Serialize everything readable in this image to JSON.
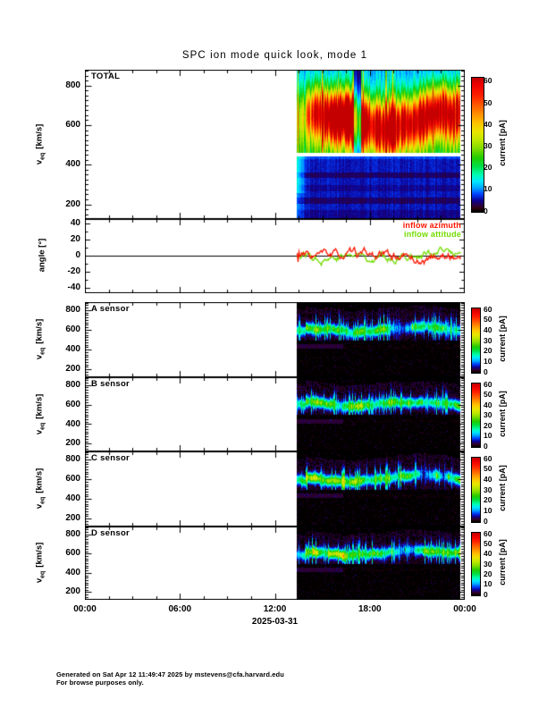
{
  "title": "SPC ion mode quick look, mode 1",
  "panels": [
    {
      "label": "TOTAL"
    },
    {
      "label": "A sensor"
    },
    {
      "label": "B sensor"
    },
    {
      "label": "C sensor"
    },
    {
      "label": "D sensor"
    }
  ],
  "xaxis": {
    "tick_labels": [
      "00:00",
      "06:00",
      "12:00",
      "18:00",
      "00:00"
    ],
    "date_label": "2025-03-31",
    "hours_total": 24
  },
  "yaxis": {
    "velocity_label_v": "v",
    "velocity_label_sub": "eq",
    "velocity_label_unit": "[km/s]",
    "velocity_ticks": [
      200,
      400,
      600,
      800
    ],
    "angle_label": "angle [°]",
    "angle_ticks": [
      40,
      20,
      0,
      -20,
      -40
    ]
  },
  "colorbar": {
    "label": "current [pA]",
    "tick_values": [
      0,
      10,
      20,
      30,
      40,
      50,
      60
    ],
    "range_pA": [
      0,
      62
    ],
    "stops": [
      [
        0,
        "#000000"
      ],
      [
        1.5,
        "#300010"
      ],
      [
        3,
        "#28004a"
      ],
      [
        5,
        "#100090"
      ],
      [
        8,
        "#0040ff"
      ],
      [
        11,
        "#00a8ff"
      ],
      [
        14,
        "#00e8ff"
      ],
      [
        17,
        "#00ffb4"
      ],
      [
        21,
        "#00e047"
      ],
      [
        25,
        "#22cc00"
      ],
      [
        29,
        "#7cdc00"
      ],
      [
        33,
        "#bce800"
      ],
      [
        37,
        "#eae600"
      ],
      [
        41,
        "#ffc400"
      ],
      [
        45,
        "#ff9400"
      ],
      [
        49,
        "#ff6000"
      ],
      [
        54,
        "#ff2000"
      ],
      [
        59,
        "#ee0000"
      ],
      [
        62,
        "#c40000"
      ]
    ]
  },
  "legend": {
    "azimuth": {
      "label": "inflow azimuth",
      "color": "#ff1400"
    },
    "attitude": {
      "label": "inflow attitude",
      "color": "#73dc00"
    }
  },
  "footer": {
    "line1": "Generated on Sat Apr 12 11:49:47 2025 by mstevens@cfa.harvard.edu",
    "line2": "For browse purposes only."
  },
  "chart_data": [
    {
      "panel": "TOTAL",
      "type": "heatmap",
      "x_range_hours": [
        0,
        24
      ],
      "x_tick_labels": [
        "00:00",
        "06:00",
        "12:00",
        "18:00",
        "00:00"
      ],
      "date": "2025-03-31",
      "y_label": "v_eq [km/s]",
      "y_range_kms": [
        130,
        880
      ],
      "y_ticks": [
        200,
        400,
        600,
        800
      ],
      "z_label": "current [pA]",
      "z_range_pA": [
        0,
        62
      ],
      "z_ticks": [
        0,
        10,
        20,
        30,
        40,
        50,
        60
      ],
      "data_coverage_hours": [
        13.4,
        23.7
      ],
      "no_data_region": "white before ~13:24 UT",
      "beam_velocity_range_kms": [
        560,
        700
      ],
      "beam_peak_current_pA": 60,
      "beam_onset_current_pA": 30,
      "white_gap_velocity_kms": 452,
      "low_velocity_background_pA": 6,
      "dark_band_velocities_kms": [
        350,
        285,
        220
      ],
      "dark_column_hours": [
        15.3,
        15.7
      ]
    },
    {
      "panel": "angle",
      "type": "line",
      "y_label": "angle [°]",
      "y_range_deg": [
        -45,
        45
      ],
      "y_ticks": [
        40,
        20,
        0,
        -20,
        -40
      ],
      "data_coverage_hours": [
        13.4,
        23.7
      ],
      "zero_line": true,
      "series": [
        {
          "name": "inflow azimuth",
          "color": "#ff1400",
          "approx_mean_deg": -1,
          "approx_excursion_deg": [
            -16,
            14
          ]
        },
        {
          "name": "inflow attitude",
          "color": "#73dc00",
          "approx_mean_deg": 1,
          "approx_excursion_deg": [
            -12,
            14
          ]
        }
      ]
    },
    {
      "panel": "A sensor",
      "type": "heatmap",
      "y_range_kms": [
        130,
        880
      ],
      "z_range_pA": [
        0,
        62
      ],
      "data_coverage_hours": [
        13.4,
        23.7
      ],
      "beam_velocity_range_kms": [
        540,
        700
      ],
      "beam_core_current_pA": [
        12,
        32
      ],
      "background_pA": 0,
      "note": "black background; cyan-green beam band ~600 km/s; faint maroon trace near 430 km/s"
    },
    {
      "panel": "B sensor",
      "type": "heatmap",
      "y_range_kms": [
        130,
        880
      ],
      "z_range_pA": [
        0,
        62
      ],
      "data_coverage_hours": [
        13.4,
        23.7
      ],
      "beam_velocity_range_kms": [
        540,
        700
      ],
      "beam_core_current_pA": [
        12,
        30
      ],
      "background_pA": 0,
      "note": "black background; cyan-green beam band with purple spikes above"
    },
    {
      "panel": "C sensor",
      "type": "heatmap",
      "y_range_kms": [
        130,
        880
      ],
      "z_range_pA": [
        0,
        62
      ],
      "data_coverage_hours": [
        13.4,
        23.7
      ],
      "beam_velocity_range_kms": [
        550,
        710
      ],
      "beam_core_current_pA": [
        14,
        32
      ],
      "background_pA": 0,
      "note": "black background; cyan-green beam band ~620 km/s"
    },
    {
      "panel": "D sensor",
      "type": "heatmap",
      "y_range_kms": [
        130,
        880
      ],
      "z_range_pA": [
        0,
        62
      ],
      "data_coverage_hours": [
        13.4,
        23.7
      ],
      "beam_velocity_range_kms": [
        540,
        720
      ],
      "beam_core_current_pA": [
        14,
        34
      ],
      "background_pA": 0,
      "note": "black background; green beam band; faint maroon trace near 430 km/s"
    }
  ]
}
